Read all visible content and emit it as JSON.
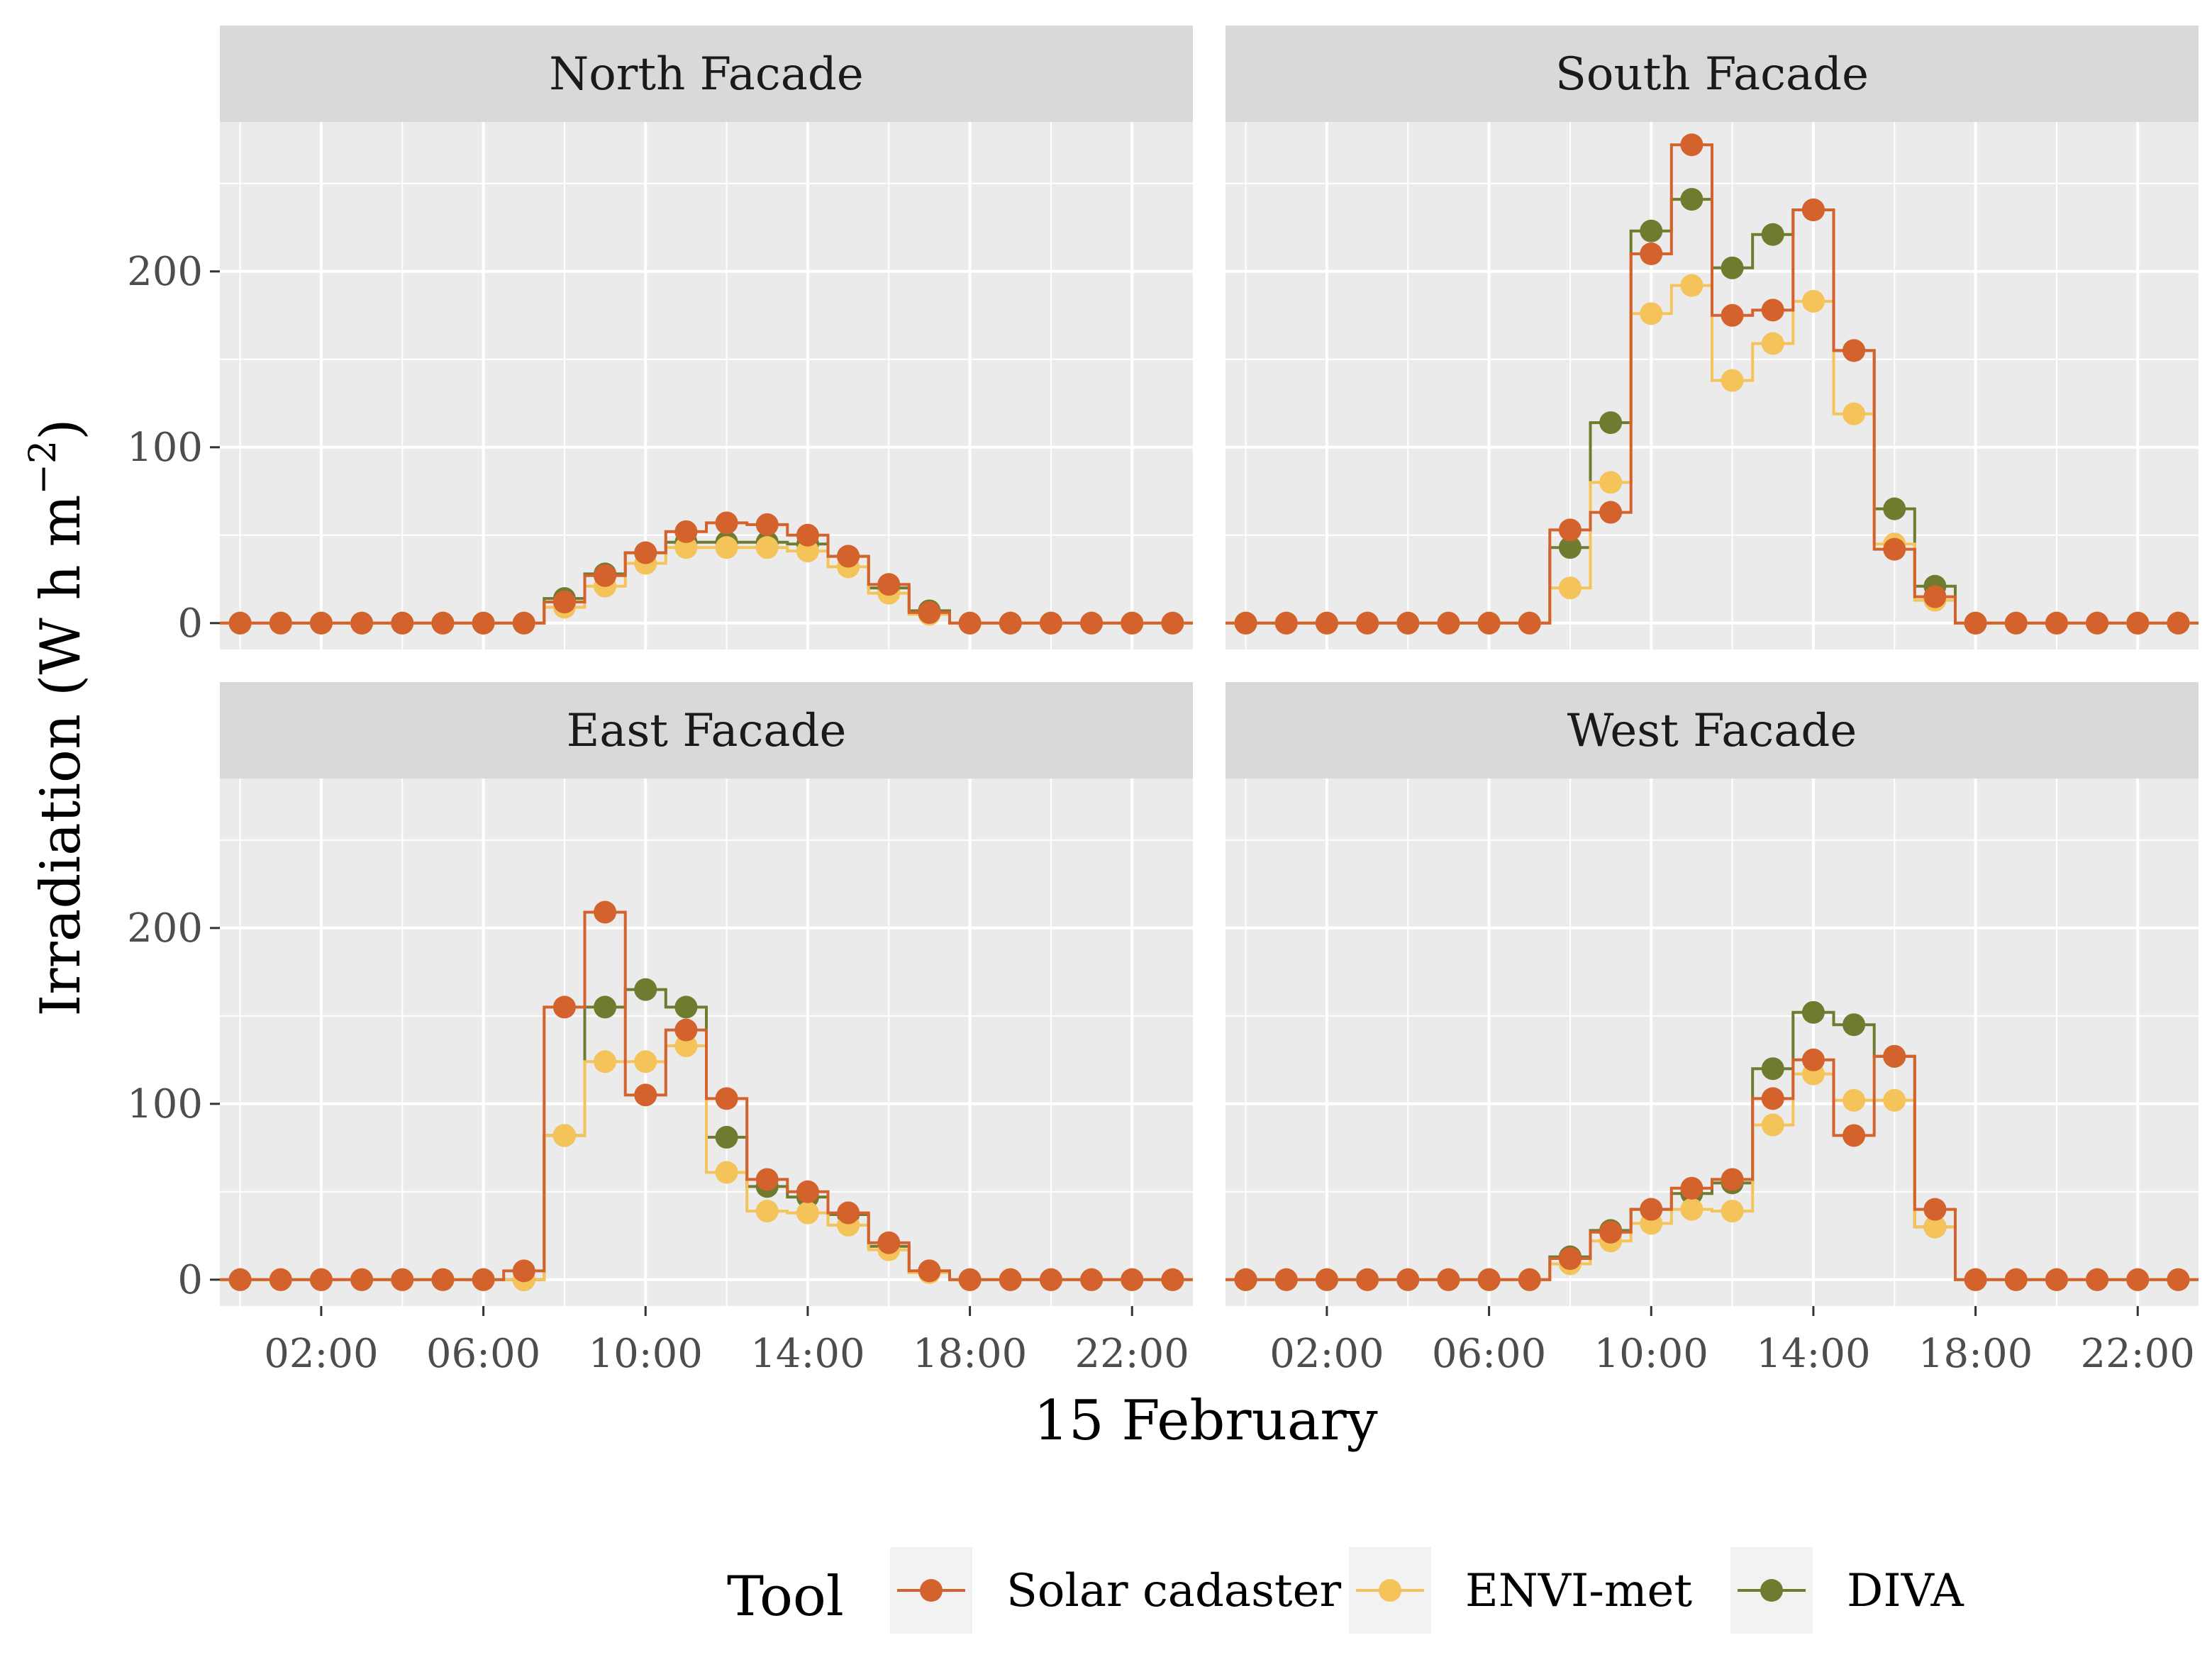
{
  "chart_data": {
    "type": "line",
    "title": "",
    "xlabel": "15 February",
    "ylabel": "Irradiation (W h m^-2)",
    "ylabel_parts": {
      "main": "Irradiation (W h m",
      "exp": "−2",
      "close": ")"
    },
    "x_hours": [
      0,
      1,
      2,
      3,
      4,
      5,
      6,
      7,
      8,
      9,
      10,
      11,
      12,
      13,
      14,
      15,
      16,
      17,
      18,
      19,
      20,
      21,
      22,
      23
    ],
    "x_ticks": [
      "02:00",
      "06:00",
      "10:00",
      "14:00",
      "18:00",
      "22:00"
    ],
    "x_tick_hours": [
      2,
      6,
      10,
      14,
      18,
      22
    ],
    "xlim": [
      -0.5,
      23.5
    ],
    "ylim": [
      -15,
      285
    ],
    "y_ticks": [
      0,
      100,
      200
    ],
    "y_tick_labels": [
      "0",
      "100",
      "200"
    ],
    "legend": {
      "title": "Tool",
      "placement": "bottom",
      "entries": [
        {
          "name": "Solar cadaster",
          "color": "#D4622C"
        },
        {
          "name": "ENVI-met",
          "color": "#F4C35A"
        },
        {
          "name": "DIVA",
          "color": "#6F7B2E"
        }
      ]
    },
    "panels": [
      {
        "title": "North Facade",
        "series": [
          {
            "name": "Solar cadaster",
            "values": [
              0,
              0,
              0,
              0,
              0,
              0,
              0,
              0,
              12,
              27,
              40,
              52,
              57,
              56,
              50,
              38,
              22,
              6,
              0,
              0,
              0,
              0,
              0,
              0
            ]
          },
          {
            "name": "ENVI-met",
            "values": [
              0,
              0,
              0,
              0,
              0,
              0,
              0,
              0,
              9,
              21,
              34,
              43,
              43,
              43,
              41,
              32,
              17,
              5,
              0,
              0,
              0,
              0,
              0,
              0
            ]
          },
          {
            "name": "DIVA",
            "values": [
              0,
              0,
              0,
              0,
              0,
              0,
              0,
              0,
              14,
              28,
              40,
              46,
              46,
              46,
              45,
              38,
              20,
              7,
              0,
              0,
              0,
              0,
              0,
              0
            ]
          }
        ]
      },
      {
        "title": "South Facade",
        "series": [
          {
            "name": "Solar cadaster",
            "values": [
              0,
              0,
              0,
              0,
              0,
              0,
              0,
              0,
              53,
              63,
              210,
              272,
              175,
              178,
              235,
              155,
              42,
              15,
              0,
              0,
              0,
              0,
              0,
              0
            ]
          },
          {
            "name": "ENVI-met",
            "values": [
              0,
              0,
              0,
              0,
              0,
              0,
              0,
              0,
              20,
              80,
              176,
              192,
              138,
              159,
              183,
              119,
              45,
              13,
              0,
              0,
              0,
              0,
              0,
              0
            ]
          },
          {
            "name": "DIVA",
            "values": [
              0,
              0,
              0,
              0,
              0,
              0,
              0,
              0,
              43,
              114,
              223,
              241,
              202,
              221,
              235,
              155,
              65,
              21,
              0,
              0,
              0,
              0,
              0,
              0
            ]
          }
        ]
      },
      {
        "title": "East Facade",
        "series": [
          {
            "name": "Solar cadaster",
            "values": [
              0,
              0,
              0,
              0,
              0,
              0,
              0,
              5,
              155,
              209,
              105,
              142,
              103,
              57,
              50,
              38,
              21,
              5,
              0,
              0,
              0,
              0,
              0,
              0
            ]
          },
          {
            "name": "ENVI-met",
            "values": [
              0,
              0,
              0,
              0,
              0,
              0,
              0,
              0,
              82,
              124,
              124,
              133,
              61,
              39,
              38,
              31,
              17,
              4,
              0,
              0,
              0,
              0,
              0,
              0
            ]
          },
          {
            "name": "DIVA",
            "values": [
              0,
              0,
              0,
              0,
              0,
              0,
              0,
              0,
              82,
              155,
              165,
              155,
              81,
              53,
              47,
              37,
              19,
              5,
              0,
              0,
              0,
              0,
              0,
              0
            ]
          }
        ]
      },
      {
        "title": "West Facade",
        "series": [
          {
            "name": "Solar cadaster",
            "values": [
              0,
              0,
              0,
              0,
              0,
              0,
              0,
              0,
              12,
              27,
              40,
              52,
              57,
              103,
              125,
              82,
              127,
              40,
              0,
              0,
              0,
              0,
              0,
              0
            ]
          },
          {
            "name": "ENVI-met",
            "values": [
              0,
              0,
              0,
              0,
              0,
              0,
              0,
              0,
              9,
              22,
              32,
              40,
              39,
              88,
              117,
              102,
              102,
              30,
              0,
              0,
              0,
              0,
              0,
              0
            ]
          },
          {
            "name": "DIVA",
            "values": [
              0,
              0,
              0,
              0,
              0,
              0,
              0,
              0,
              13,
              28,
              40,
              49,
              55,
              120,
              152,
              145,
              127,
              30,
              0,
              0,
              0,
              0,
              0,
              0
            ]
          }
        ]
      }
    ]
  }
}
